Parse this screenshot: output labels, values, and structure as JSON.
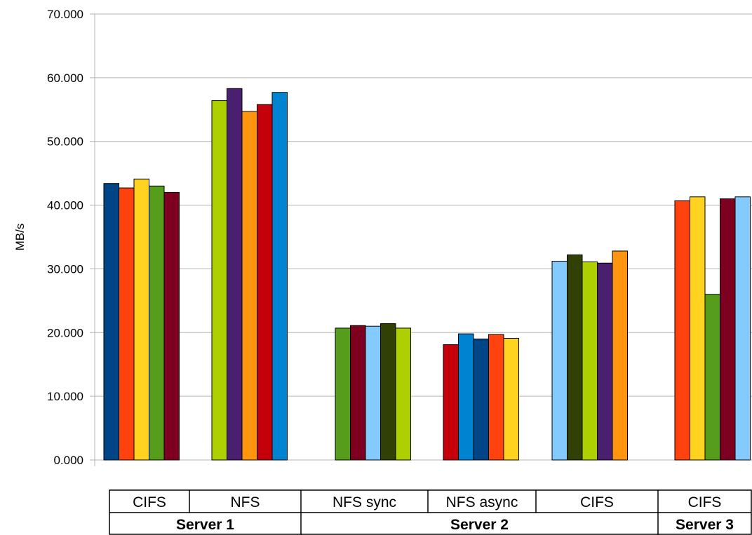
{
  "chart_data": {
    "type": "bar",
    "ylabel": "MB/s",
    "ylim": [
      0,
      70
    ],
    "yticks": [
      "0.000",
      "10.000",
      "20.000",
      "30.000",
      "40.000",
      "50.000",
      "60.000",
      "70.000"
    ],
    "grid": true,
    "groups": [
      {
        "category": "CIFS",
        "server": "Server 1",
        "values": [
          43.4,
          42.7,
          44.1,
          43.0,
          42.0
        ],
        "colors": [
          "#004586",
          "#ff420e",
          "#ffd320",
          "#579d1c",
          "#7e0021"
        ]
      },
      {
        "category": "NFS",
        "server": "Server 1",
        "values": [
          56.4,
          58.3,
          54.7,
          55.8,
          57.7
        ],
        "colors": [
          "#aecf00",
          "#4b1f6f",
          "#ff950e",
          "#c5000b",
          "#0084d1"
        ]
      },
      {
        "category": "NFS sync",
        "server": "Server 2",
        "values": [
          20.7,
          21.1,
          21.0,
          21.4,
          20.7
        ],
        "colors": [
          "#579d1c",
          "#7e0021",
          "#83caff",
          "#314004",
          "#aecf00"
        ]
      },
      {
        "category": "NFS async",
        "server": "Server 2",
        "values": [
          18.1,
          19.8,
          19.0,
          19.7,
          19.1
        ],
        "colors": [
          "#c5000b",
          "#0084d1",
          "#004586",
          "#ff420e",
          "#ffd320"
        ]
      },
      {
        "category": "CIFS",
        "server": "Server 2",
        "values": [
          31.2,
          32.2,
          31.1,
          30.9,
          32.8
        ],
        "colors": [
          "#83caff",
          "#314004",
          "#aecf00",
          "#4b1f6f",
          "#ff950e"
        ]
      },
      {
        "category": "CIFS",
        "server": "Server 3",
        "values": [
          40.7,
          41.3,
          26.0,
          41.0,
          41.3
        ],
        "colors": [
          "#ff420e",
          "#ffd320",
          "#579d1c",
          "#7e0021",
          "#83caff"
        ]
      }
    ],
    "servers": [
      "Server 1",
      "Server 2",
      "Server 3"
    ]
  }
}
